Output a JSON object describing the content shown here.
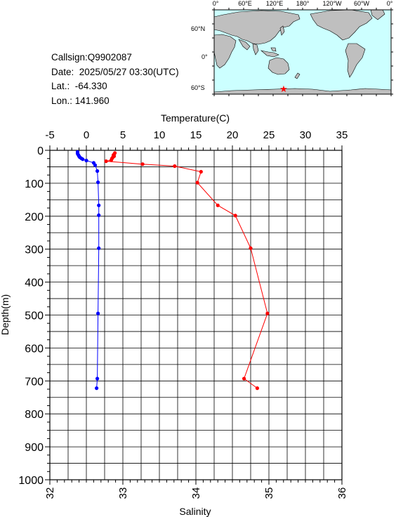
{
  "meta": {
    "callsign_label": "Callsign:",
    "callsign": "Q9902087",
    "date_label": "Date:",
    "date": "2025/05/27 03:30(UTC)",
    "lat_label": "Lat.:",
    "lat": "-64.330",
    "lon_label": "Lon.:",
    "lon": "141.960"
  },
  "map": {
    "top_labels": [
      "0°",
      "60°E",
      "120°E",
      "180°",
      "120°W",
      "60°W",
      "0°"
    ],
    "lat_labels": [
      "60°N",
      "0°",
      "60°S"
    ],
    "marker_symbol": "★",
    "ocean_color": "#ccffff",
    "land_color": "#bfbfbf",
    "marker_color": "#ff0000"
  },
  "colors": {
    "temperature": "#ff0000",
    "salinity": "#0000ff",
    "grid": "#000000"
  },
  "chart_data": {
    "type": "line",
    "ylabel": "Depth(m)",
    "ylim": [
      0,
      1000
    ],
    "y_ticks": [
      0,
      100,
      200,
      300,
      400,
      500,
      600,
      700,
      800,
      900,
      1000
    ],
    "y_inverted": true,
    "grid": true,
    "top_axis": {
      "label": "Temperature(C)",
      "lim": [
        -5,
        35
      ],
      "ticks": [
        -5,
        0,
        5,
        10,
        15,
        20,
        25,
        30,
        35
      ]
    },
    "bottom_axis": {
      "label": "Salinity",
      "lim": [
        32,
        36
      ],
      "ticks": [
        32,
        33,
        34,
        35,
        36
      ]
    },
    "series": [
      {
        "axis": "top",
        "color": "#ff0000",
        "points": [
          [
            3.9,
            8
          ],
          [
            3.8,
            12
          ],
          [
            3.7,
            15
          ],
          [
            3.8,
            18
          ],
          [
            3.6,
            22
          ],
          [
            3.5,
            25
          ],
          [
            3.4,
            30
          ],
          [
            2.7,
            33
          ],
          [
            7.7,
            42
          ],
          [
            12.1,
            48
          ],
          [
            15.7,
            65
          ],
          [
            15.2,
            98
          ],
          [
            18.0,
            167
          ],
          [
            20.4,
            198
          ],
          [
            22.5,
            297
          ],
          [
            24.8,
            495
          ],
          [
            21.6,
            693
          ],
          [
            23.4,
            722
          ]
        ]
      },
      {
        "axis": "bottom",
        "color": "#0000ff",
        "points": [
          [
            32.38,
            5
          ],
          [
            32.38,
            10
          ],
          [
            32.39,
            14
          ],
          [
            32.4,
            18
          ],
          [
            32.41,
            21
          ],
          [
            32.43,
            24
          ],
          [
            32.45,
            27
          ],
          [
            32.5,
            31
          ],
          [
            32.6,
            38
          ],
          [
            32.62,
            45
          ],
          [
            32.65,
            63
          ],
          [
            32.66,
            97
          ],
          [
            32.67,
            167
          ],
          [
            32.67,
            197
          ],
          [
            32.67,
            297
          ],
          [
            32.66,
            495
          ],
          [
            32.65,
            693
          ],
          [
            32.64,
            722
          ]
        ]
      }
    ]
  }
}
